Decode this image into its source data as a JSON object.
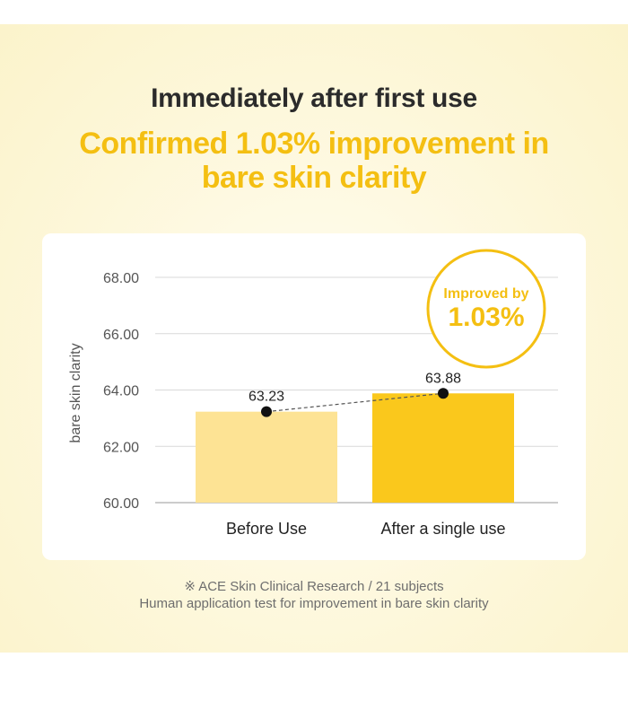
{
  "header": {
    "title": "Immediately after first use",
    "subtitle_line1": "Confirmed 1.03% improvement in",
    "subtitle_line2": "bare skin clarity"
  },
  "badge": {
    "line1": "Improved by",
    "line2": "1.03%"
  },
  "footnote": {
    "line1": "※ ACE Skin Clinical Research / 21 subjects",
    "line2": "Human application test for improvement in bare skin clarity"
  },
  "colors": {
    "accent": "#f4bf12",
    "bar_before": "#fde394",
    "bar_after": "#fac81c",
    "title_text": "#2b2b2b"
  },
  "chart_data": {
    "type": "bar",
    "categories": [
      "Before Use",
      "After a single use"
    ],
    "values": [
      63.23,
      63.88
    ],
    "value_labels": [
      "63.23",
      "63.88"
    ],
    "ylabel": "bare skin clarity",
    "xlabel": "",
    "ylim": [
      60,
      68
    ],
    "yticks": [
      "60.00",
      "62.00",
      "64.00",
      "66.00",
      "68.00"
    ],
    "ytick_values": [
      60,
      62,
      64,
      66,
      68
    ],
    "grid": true,
    "overlay": "dashed line connecting bar values"
  }
}
